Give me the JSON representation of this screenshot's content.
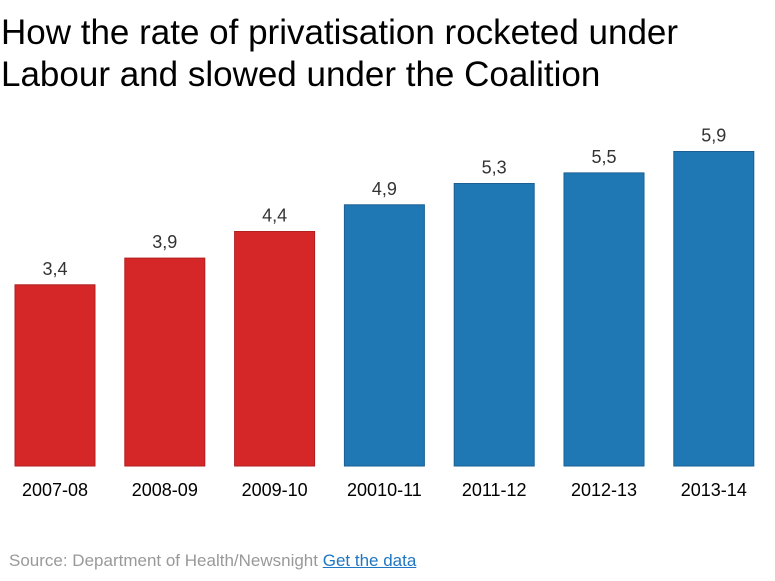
{
  "colors": {
    "labour": "#d62728",
    "labour_stroke": "#b11f1f",
    "coalition": "#1f77b4",
    "coalition_stroke": "#1a5f93",
    "link": "#1f77c4",
    "source_text": "#999999"
  },
  "chart_data": {
    "type": "bar",
    "title": "How the rate of privatisation rocketed under Labour and slowed under the Coalition",
    "title_lines": [
      "How the rate of privatisation rocketed under",
      "Labour and slowed under the Coalition"
    ],
    "categories": [
      "2007-08",
      "2008-09",
      "2009-10",
      "20010-11",
      "2011-12",
      "2012-13",
      "2013-14"
    ],
    "values": [
      3.4,
      3.9,
      4.4,
      4.9,
      5.3,
      5.5,
      5.9
    ],
    "value_labels": [
      "3,4",
      "3,9",
      "4,4",
      "4,9",
      "5,3",
      "5,5",
      "5,9"
    ],
    "bar_groups": [
      "labour",
      "labour",
      "labour",
      "coalition",
      "coalition",
      "coalition",
      "coalition"
    ],
    "xlabel": "",
    "ylabel": "",
    "ylim": [
      0,
      6
    ],
    "grid": false,
    "legend": "none"
  },
  "footer": {
    "source_text": "Source: Department of Health/Newsnight",
    "link_text": "Get the data"
  }
}
